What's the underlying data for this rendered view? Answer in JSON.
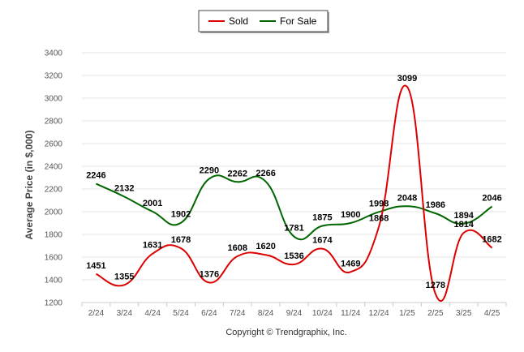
{
  "legend": {
    "sold_label": "Sold",
    "for_sale_label": "For Sale"
  },
  "copyright": "Copyright © Trendgraphix, Inc.",
  "chart_data": {
    "type": "line",
    "ylabel": "Average Price (in $,000)",
    "xlabel": "",
    "ylim": [
      1200,
      3400
    ],
    "yticks": [
      1200,
      1400,
      1600,
      1800,
      2000,
      2200,
      2400,
      2600,
      2800,
      3000,
      3200,
      3400
    ],
    "grid": true,
    "legend_position": "top-center",
    "categories": [
      "2/24",
      "3/24",
      "4/24",
      "5/24",
      "6/24",
      "7/24",
      "8/24",
      "9/24",
      "10/24",
      "11/24",
      "12/24",
      "1/25",
      "2/25",
      "3/25",
      "4/25"
    ],
    "series": [
      {
        "name": "Sold",
        "color": "#dd0000",
        "values": [
          1451,
          1355,
          1631,
          1678,
          1376,
          1608,
          1620,
          1536,
          1674,
          1469,
          1868,
          3099,
          1278,
          1814,
          1682
        ]
      },
      {
        "name": "For Sale",
        "color": "#006600",
        "values": [
          2246,
          2132,
          2001,
          1902,
          2290,
          2262,
          2266,
          1781,
          1875,
          1900,
          1998,
          2048,
          1986,
          1894,
          2046
        ]
      }
    ]
  }
}
